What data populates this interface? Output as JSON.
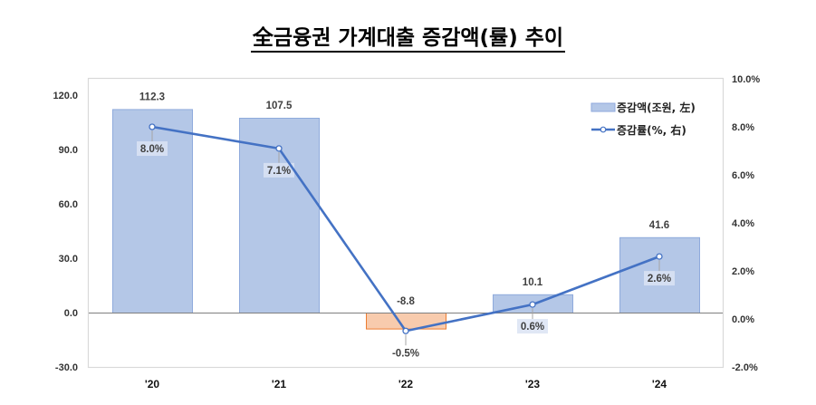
{
  "title": "全금융권 가계대출 증감액(률) 추이",
  "legend": {
    "bar_label": "증감액(조원, 左)",
    "line_label": "증감률(%, 右)"
  },
  "colors": {
    "bar_positive_fill": "#b4c7e7",
    "bar_positive_border": "#8faadc",
    "bar_negative_fill": "#f8cbad",
    "bar_negative_border": "#ed7d31",
    "line": "#4472c4",
    "axis": "#d9d9d9",
    "zero_line": "#808080"
  },
  "axes": {
    "left_ticks": [
      "120.0",
      "90.0",
      "60.0",
      "30.0",
      "0.0",
      "-30.0"
    ],
    "right_ticks": [
      "10.0%",
      "8.0%",
      "6.0%",
      "4.0%",
      "2.0%",
      "0.0%",
      "-2.0%"
    ]
  },
  "chart_data": {
    "type": "bar",
    "title": "全금융권 가계대출 증감액(률) 추이",
    "categories": [
      "'20",
      "'21",
      "'22",
      "'23",
      "'24"
    ],
    "series": [
      {
        "name": "증감액(조원, 左)",
        "type": "bar",
        "axis": "left",
        "values": [
          112.3,
          107.5,
          -8.8,
          10.1,
          41.6
        ],
        "labels": [
          "112.3",
          "107.5",
          "-8.8",
          "10.1",
          "41.6"
        ]
      },
      {
        "name": "증감률(%, 右)",
        "type": "line",
        "axis": "right",
        "values": [
          8.0,
          7.1,
          -0.5,
          0.6,
          2.6
        ],
        "labels": [
          "8.0%",
          "7.1%",
          "-0.5%",
          "0.6%",
          "2.6%"
        ]
      }
    ],
    "xlabel": "",
    "ylabel_left": "",
    "ylabel_right": "",
    "ylim_left": [
      -30,
      120
    ],
    "ylim_right": [
      -2,
      10
    ],
    "grid": false,
    "legend_position": "top-right inside"
  }
}
